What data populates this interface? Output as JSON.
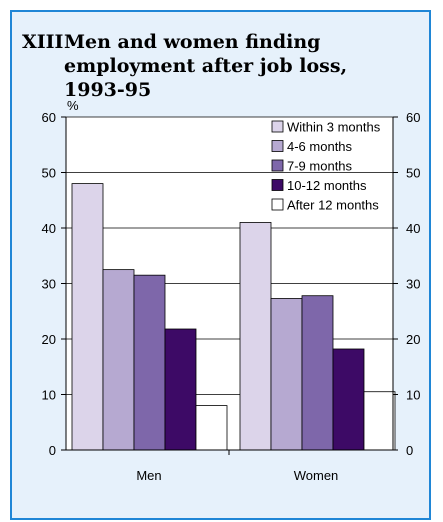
{
  "chart_data": {
    "type": "bar",
    "title_number": "XIII",
    "title": "Men and women finding employment after job loss, 1993-95",
    "ylabel": "%",
    "xlabel": "",
    "ylim": [
      0,
      60
    ],
    "yticks": [
      0,
      10,
      20,
      30,
      40,
      50,
      60
    ],
    "categories": [
      "Men",
      "Women"
    ],
    "series": [
      {
        "name": "Within 3 months",
        "color": "#dcd4ea",
        "values": [
          48,
          41
        ]
      },
      {
        "name": "4-6 months",
        "color": "#b6a9d1",
        "values": [
          32.5,
          27.3
        ]
      },
      {
        "name": "7-9 months",
        "color": "#7e67aa",
        "values": [
          31.5,
          27.8
        ]
      },
      {
        "name": "10-12 months",
        "color": "#3d0a66",
        "values": [
          21.8,
          18.2
        ]
      },
      {
        "name": "After 12 months",
        "color": "#ffffff",
        "values": [
          8,
          10.5
        ]
      }
    ],
    "grid": true,
    "legend_position": "top-right",
    "colors": {
      "frame_border": "#1f86d6",
      "frame_background": "#e6f1fb",
      "plot_background": "#ffffff"
    }
  }
}
